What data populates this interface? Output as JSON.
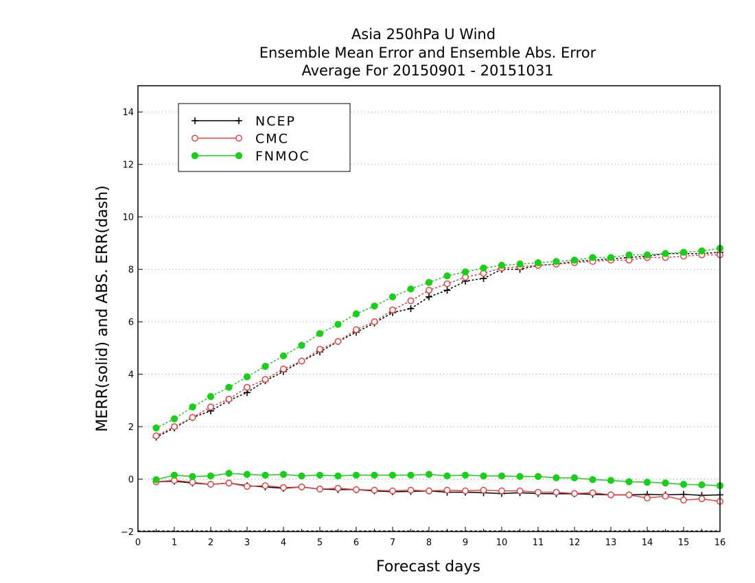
{
  "chart_data": {
    "type": "line",
    "title": [
      "Asia 250hPa U Wind",
      "Ensemble Mean Error and Ensemble Abs. Error",
      "Average For 20150901 - 20151031"
    ],
    "xlabel": "Forecast days",
    "ylabel": "MERR(solid) and ABS. ERR(dash)",
    "xlim": [
      0,
      16
    ],
    "ylim": [
      -2,
      15
    ],
    "xticks": [
      0,
      1,
      2,
      3,
      4,
      5,
      6,
      7,
      8,
      9,
      10,
      11,
      12,
      13,
      14,
      15,
      16
    ],
    "yticks": [
      -2,
      0,
      2,
      4,
      6,
      8,
      10,
      12,
      14
    ],
    "grid": "horizontal dotted",
    "legend_position": "top-left",
    "x": [
      0.5,
      1,
      1.5,
      2,
      2.5,
      3,
      3.5,
      4,
      4.5,
      5,
      5.5,
      6,
      6.5,
      7,
      7.5,
      8,
      8.5,
      9,
      9.5,
      10,
      10.5,
      11,
      11.5,
      12,
      12.5,
      13,
      13.5,
      14,
      14.5,
      15,
      15.5,
      16
    ],
    "series": [
      {
        "name": "NCEP",
        "color": "#000000",
        "marker": "plus",
        "merr": [
          -0.1,
          -0.08,
          -0.15,
          -0.2,
          -0.15,
          -0.25,
          -0.3,
          -0.35,
          -0.3,
          -0.38,
          -0.4,
          -0.4,
          -0.45,
          -0.48,
          -0.47,
          -0.45,
          -0.5,
          -0.5,
          -0.52,
          -0.55,
          -0.52,
          -0.55,
          -0.56,
          -0.56,
          -0.58,
          -0.6,
          -0.6,
          -0.58,
          -0.6,
          -0.58,
          -0.62,
          -0.6
        ],
        "abs_err": [
          1.6,
          1.95,
          2.35,
          2.6,
          3.0,
          3.3,
          3.75,
          4.1,
          4.5,
          4.85,
          5.25,
          5.6,
          5.95,
          6.35,
          6.5,
          6.95,
          7.2,
          7.55,
          7.65,
          8.0,
          8.0,
          8.15,
          8.2,
          8.3,
          8.35,
          8.4,
          8.45,
          8.5,
          8.6,
          8.6,
          8.6,
          8.65
        ]
      },
      {
        "name": "CMC",
        "color": "#e84040",
        "marker": "open-circle",
        "merr": [
          -0.1,
          -0.05,
          -0.12,
          -0.2,
          -0.15,
          -0.28,
          -0.25,
          -0.32,
          -0.3,
          -0.38,
          -0.35,
          -0.4,
          -0.42,
          -0.45,
          -0.42,
          -0.45,
          -0.42,
          -0.45,
          -0.42,
          -0.45,
          -0.45,
          -0.5,
          -0.5,
          -0.55,
          -0.52,
          -0.6,
          -0.6,
          -0.72,
          -0.65,
          -0.8,
          -0.75,
          -0.85
        ],
        "abs_err": [
          1.65,
          2.0,
          2.35,
          2.75,
          3.05,
          3.5,
          3.8,
          4.2,
          4.5,
          4.95,
          5.25,
          5.7,
          6.0,
          6.45,
          6.8,
          7.2,
          7.45,
          7.7,
          7.85,
          8.05,
          8.1,
          8.15,
          8.2,
          8.25,
          8.3,
          8.35,
          8.35,
          8.45,
          8.45,
          8.5,
          8.55,
          8.55
        ]
      },
      {
        "name": "FNMOC",
        "color": "#17d017",
        "marker": "filled-circle",
        "merr": [
          -0.02,
          0.15,
          0.1,
          0.12,
          0.22,
          0.18,
          0.15,
          0.18,
          0.12,
          0.15,
          0.12,
          0.15,
          0.15,
          0.15,
          0.15,
          0.18,
          0.12,
          0.15,
          0.12,
          0.12,
          0.1,
          0.1,
          0.05,
          0.05,
          -0.02,
          -0.05,
          -0.1,
          -0.12,
          -0.15,
          -0.2,
          -0.22,
          -0.25
        ],
        "abs_err": [
          1.95,
          2.3,
          2.75,
          3.15,
          3.5,
          3.9,
          4.3,
          4.7,
          5.1,
          5.55,
          5.9,
          6.3,
          6.6,
          6.95,
          7.25,
          7.5,
          7.75,
          7.9,
          8.05,
          8.15,
          8.2,
          8.25,
          8.3,
          8.35,
          8.45,
          8.45,
          8.55,
          8.55,
          8.6,
          8.65,
          8.7,
          8.8
        ]
      }
    ]
  }
}
